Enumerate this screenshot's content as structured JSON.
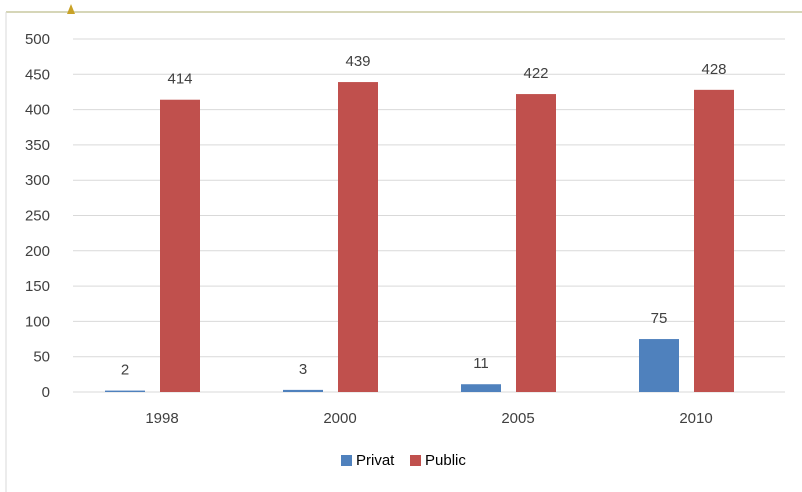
{
  "chart_data": {
    "type": "bar",
    "categories": [
      "1998",
      "2000",
      "2005",
      "2010"
    ],
    "series": [
      {
        "name": "Privat",
        "values": [
          2,
          3,
          11,
          75
        ],
        "color": "#4F81BD"
      },
      {
        "name": "Public",
        "values": [
          414,
          439,
          422,
          428
        ],
        "color": "#C0504D"
      }
    ],
    "ylim": [
      0,
      500
    ],
    "yticks": [
      0,
      50,
      100,
      150,
      200,
      250,
      300,
      350,
      400,
      450,
      500
    ],
    "grid": true,
    "legend_position": "bottom",
    "data_labels": true
  },
  "colors": {
    "gridline": "#D9D9D9",
    "frame": "#D9D9D9",
    "accent_border": "#C8C8A0",
    "accent_marker": "#C9A227"
  }
}
